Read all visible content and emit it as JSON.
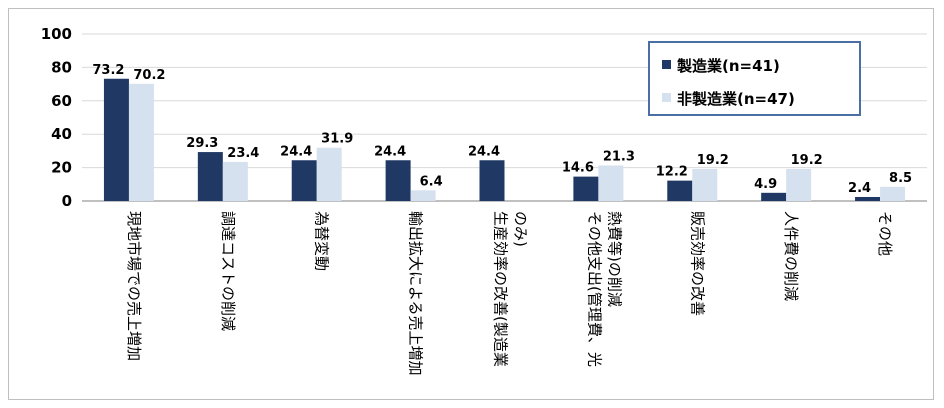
{
  "chart_data": {
    "type": "bar",
    "categories": [
      "現地市場での売上増加",
      "調達コストの削減",
      "為替変動",
      "輸出拡大による売上増加",
      "生産効率の改善(製造業のみ)",
      "その他支出(管理費、光熱費等)の削減",
      "販売効率の改善",
      "人件費の削減",
      "その他"
    ],
    "category_lines": [
      [
        "現地市場での売上増加"
      ],
      [
        "調達コストの削減"
      ],
      [
        "為替変動"
      ],
      [
        "輸出拡大による売上増加"
      ],
      [
        "生産効率の改善(製造業",
        "のみ)"
      ],
      [
        "その他支出(管理費、光",
        "熱費等)の削減"
      ],
      [
        "販売効率の改善"
      ],
      [
        "人件費の削減"
      ],
      [
        "その他"
      ]
    ],
    "series": [
      {
        "name": "製造業(n=41)",
        "color": "#1f3864",
        "values": [
          73.2,
          29.3,
          24.4,
          24.4,
          24.4,
          14.6,
          12.2,
          4.9,
          2.4
        ],
        "labels": [
          "73.2",
          "29.3",
          "24.4",
          "24.4",
          "24.4",
          "14.6",
          "12.2",
          "4.9",
          "2.4"
        ]
      },
      {
        "name": "非製造業(n=47)",
        "color": "#d6e1ef",
        "values": [
          70.2,
          23.4,
          31.9,
          6.4,
          null,
          21.3,
          19.2,
          19.2,
          8.5
        ],
        "labels": [
          "70.2",
          "23.4",
          "31.9",
          "6.4",
          "",
          "21.3",
          "19.2",
          "19.2",
          "8.5"
        ]
      }
    ],
    "ylim": [
      0,
      100
    ],
    "yticks": [
      "0",
      "20",
      "40",
      "60",
      "80",
      "100"
    ],
    "grid": true,
    "legend": "top-right",
    "title": "",
    "xlabel": "",
    "ylabel": ""
  }
}
